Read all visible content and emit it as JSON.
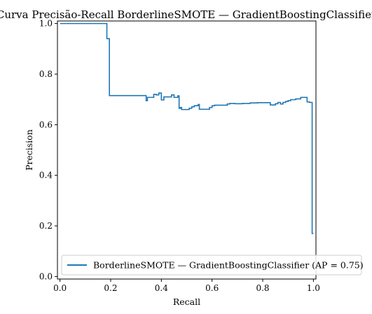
{
  "chart_data": {
    "type": "line",
    "title": "Curva Precisão-Recall BorderlineSMOTE — GradientBoostingClassifier",
    "xlabel": "Recall",
    "ylabel": "Precision",
    "xlim": [
      -0.01,
      1.01
    ],
    "ylim": [
      -0.01,
      1.01
    ],
    "xticks": [
      0.0,
      0.2,
      0.4,
      0.6,
      0.8,
      1.0
    ],
    "yticks": [
      0.0,
      0.2,
      0.4,
      0.6,
      0.8,
      1.0
    ],
    "xtick_labels": [
      "0.0",
      "0.2",
      "0.4",
      "0.6",
      "0.8",
      "1.0"
    ],
    "ytick_labels": [
      "0.0",
      "0.2",
      "0.4",
      "0.6",
      "0.8",
      "1.0"
    ],
    "grid": false,
    "legend_position": "lower right",
    "drawstyle": "steps-post",
    "series": [
      {
        "name": "BorderlineSMOTE — GradientBoostingClassifier (AP = 0.75)",
        "color": "#1f77b4",
        "recall": [
          0.0,
          0.185,
          0.185,
          0.195,
          0.195,
          0.34,
          0.34,
          0.345,
          0.345,
          0.37,
          0.37,
          0.38,
          0.38,
          0.39,
          0.39,
          0.4,
          0.4,
          0.41,
          0.41,
          0.44,
          0.44,
          0.45,
          0.45,
          0.465,
          0.465,
          0.47,
          0.47,
          0.475,
          0.475,
          0.48,
          0.48,
          0.51,
          0.51,
          0.52,
          0.52,
          0.53,
          0.53,
          0.545,
          0.545,
          0.55,
          0.55,
          0.59,
          0.59,
          0.6,
          0.6,
          0.61,
          0.61,
          0.66,
          0.66,
          0.67,
          0.67,
          0.69,
          0.69,
          0.72,
          0.72,
          0.75,
          0.75,
          0.78,
          0.78,
          0.83,
          0.83,
          0.85,
          0.85,
          0.86,
          0.86,
          0.87,
          0.87,
          0.88,
          0.88,
          0.89,
          0.89,
          0.9,
          0.9,
          0.91,
          0.91,
          0.93,
          0.93,
          0.95,
          0.95,
          0.975,
          0.975,
          0.985,
          0.985,
          0.99,
          0.99,
          0.995,
          0.995,
          1.0
        ],
        "precision": [
          1.0,
          1.0,
          0.94,
          0.94,
          0.715,
          0.715,
          0.695,
          0.695,
          0.708,
          0.708,
          0.72,
          0.72,
          0.718,
          0.718,
          0.725,
          0.725,
          0.698,
          0.698,
          0.71,
          0.71,
          0.718,
          0.718,
          0.708,
          0.708,
          0.714,
          0.714,
          0.665,
          0.665,
          0.668,
          0.668,
          0.66,
          0.66,
          0.665,
          0.665,
          0.671,
          0.671,
          0.675,
          0.675,
          0.68,
          0.68,
          0.661,
          0.661,
          0.668,
          0.668,
          0.675,
          0.675,
          0.677,
          0.677,
          0.682,
          0.682,
          0.684,
          0.684,
          0.683,
          0.683,
          0.684,
          0.684,
          0.686,
          0.686,
          0.687,
          0.687,
          0.678,
          0.678,
          0.683,
          0.683,
          0.688,
          0.688,
          0.682,
          0.682,
          0.688,
          0.688,
          0.692,
          0.692,
          0.695,
          0.695,
          0.699,
          0.699,
          0.702,
          0.702,
          0.708,
          0.708,
          0.69,
          0.69,
          0.688,
          0.688,
          0.688,
          0.688,
          0.17,
          0.17
        ]
      }
    ]
  }
}
